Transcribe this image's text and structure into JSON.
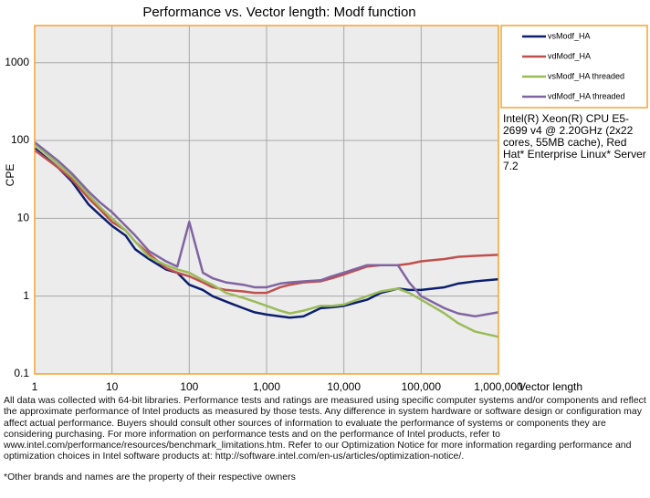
{
  "chart_data": {
    "type": "line",
    "title": "Performance vs. Vector length: Modf function",
    "x_label": "Vector length",
    "y_label": "CPE",
    "log_x": true,
    "log_y": true,
    "grid": true,
    "legend_position": "right",
    "xlim": [
      1,
      1000000
    ],
    "ylim": [
      0.1,
      3000
    ],
    "xticks": [
      1,
      10,
      100,
      {
        "value": 1000,
        "label": "1,000"
      },
      {
        "value": 10000,
        "label": "10,000"
      },
      {
        "value": 100000,
        "label": "100,000"
      },
      {
        "value": 1000000,
        "label": "1,000,000"
      }
    ],
    "yticks": [
      0.1,
      1,
      10,
      100,
      1000
    ],
    "x": [
      1,
      2,
      3,
      5,
      7,
      10,
      15,
      20,
      30,
      50,
      70,
      100,
      150,
      200,
      300,
      500,
      700,
      1000,
      1500,
      2000,
      3000,
      5000,
      7000,
      10000,
      20000,
      30000,
      50000,
      70000,
      100000,
      200000,
      300000,
      500000,
      1000000
    ],
    "series": [
      {
        "name": "vsModf_HA",
        "color": "#0b1f6e",
        "values": [
          80,
          45,
          30,
          15,
          11,
          8,
          6,
          4,
          3,
          2.2,
          2.0,
          1.4,
          1.2,
          1.0,
          0.85,
          0.7,
          0.62,
          0.58,
          0.55,
          0.53,
          0.55,
          0.7,
          0.72,
          0.75,
          0.9,
          1.1,
          1.25,
          1.2,
          1.2,
          1.3,
          1.45,
          1.55,
          1.65
        ]
      },
      {
        "name": "vdModf_HA",
        "color": "#c0504d",
        "values": [
          75,
          45,
          32,
          18,
          13,
          9,
          7,
          5,
          3.5,
          2.3,
          2.0,
          1.8,
          1.5,
          1.3,
          1.2,
          1.15,
          1.1,
          1.1,
          1.3,
          1.4,
          1.5,
          1.55,
          1.7,
          1.9,
          2.4,
          2.5,
          2.5,
          2.6,
          2.8,
          3.0,
          3.2,
          3.3,
          3.4
        ]
      },
      {
        "name": "vsModf_HA threaded",
        "color": "#9bbb59",
        "values": [
          90,
          50,
          35,
          20,
          14,
          10,
          7,
          5,
          3.2,
          2.5,
          2.2,
          2.0,
          1.6,
          1.4,
          1.1,
          0.95,
          0.85,
          0.75,
          0.65,
          0.6,
          0.65,
          0.75,
          0.75,
          0.78,
          1.0,
          1.15,
          1.25,
          1.1,
          0.9,
          0.6,
          0.45,
          0.35,
          0.3
        ]
      },
      {
        "name": "vdModf_HA threaded",
        "color": "#8064a2",
        "values": [
          95,
          55,
          38,
          22,
          16,
          12,
          8,
          6,
          3.8,
          2.8,
          2.4,
          9,
          2.0,
          1.7,
          1.5,
          1.4,
          1.3,
          1.3,
          1.45,
          1.5,
          1.55,
          1.6,
          1.8,
          2.0,
          2.5,
          2.5,
          2.5,
          1.5,
          1.0,
          0.7,
          0.6,
          0.55,
          0.62
        ]
      }
    ],
    "note": "Intel(R) Xeon(R) CPU E5-2699 v4 @ 2.20GHz (2x22 cores, 55MB cache), Red Hat* Enterprise Linux* Server 7.2",
    "footer": [
      "All data was collected with 64-bit libraries. Performance tests and ratings are measured using specific computer systems and/or components and reflect the approximate performance of Intel products as measured by those tests. Any difference in system hardware or software design or configuration may affect actual performance. Buyers should consult other sources of information to evaluate the performance of systems or components they are considering purchasing. For more information on performance tests and on the performance of Intel products, refer to www.intel.com/performance/resources/benchmark_limitations.htm. Refer to our Optimization Notice for more information regarding performance and optimization choices in Intel software products at: http://software.intel.com/en-us/articles/optimization-notice/.",
      "*Other brands and names are the property of their respective owners"
    ]
  }
}
